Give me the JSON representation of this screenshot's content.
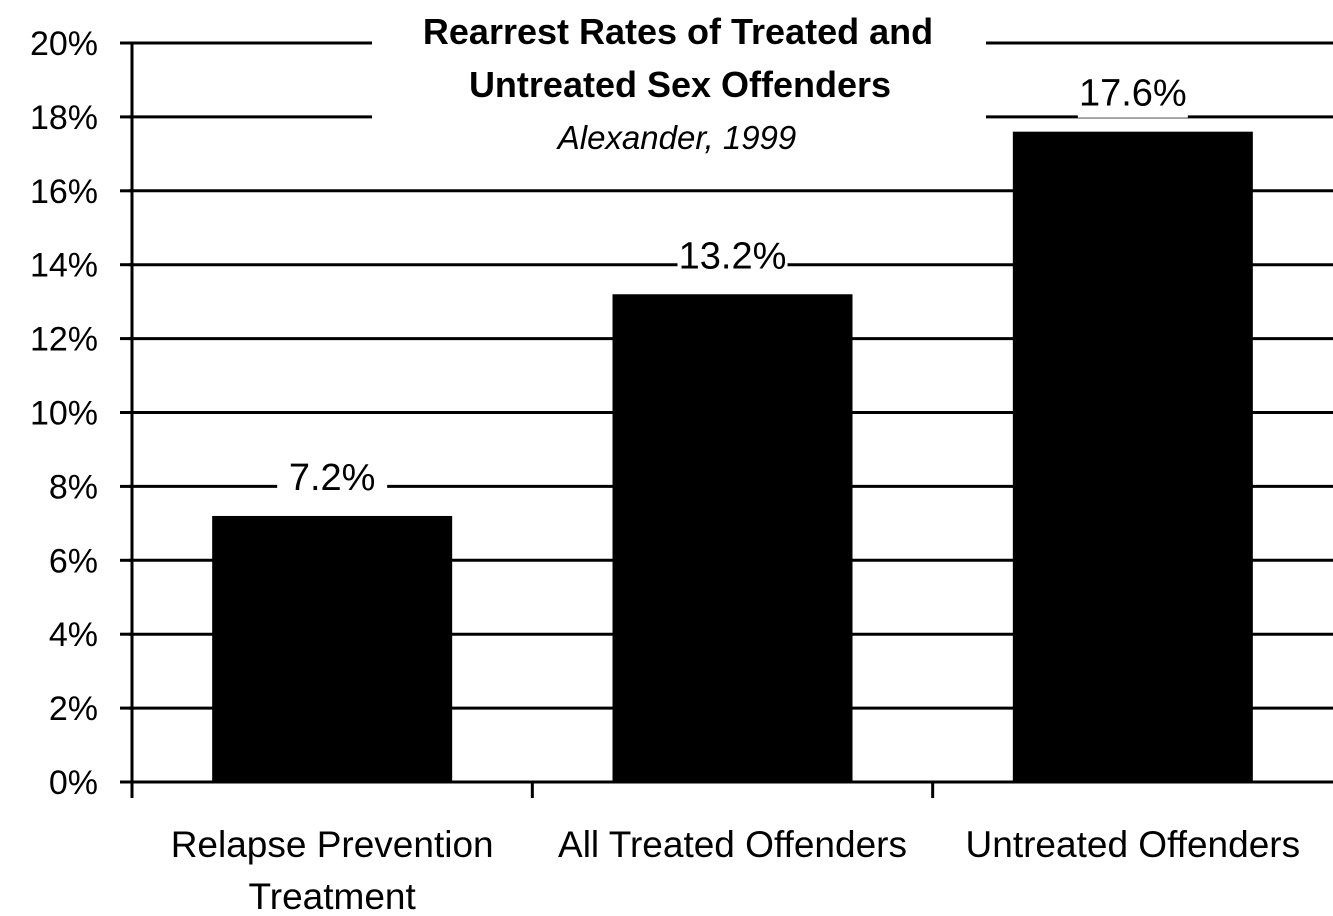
{
  "chart_data": {
    "type": "bar",
    "title_lines": [
      "Rearrest Rates of Treated and",
      "Untreated Sex Offenders"
    ],
    "subtitle": "Alexander, 1999",
    "categories": [
      [
        "Relapse Prevention",
        "Treatment"
      ],
      [
        "All Treated Offenders"
      ],
      [
        "Untreated Offenders"
      ]
    ],
    "values": [
      7.2,
      13.2,
      17.6
    ],
    "data_labels": [
      "7.2%",
      "13.2%",
      "17.6%"
    ],
    "ylim": [
      0,
      20
    ],
    "yticks": [
      0,
      2,
      4,
      6,
      8,
      10,
      12,
      14,
      16,
      18,
      20
    ],
    "ytick_labels": [
      "0%",
      "2%",
      "4%",
      "6%",
      "8%",
      "10%",
      "12%",
      "14%",
      "16%",
      "18%",
      "20%"
    ],
    "grid": true,
    "legend": "none",
    "colors": {
      "bar": "#000000",
      "grid": "#000000",
      "background": "#ffffff"
    }
  }
}
